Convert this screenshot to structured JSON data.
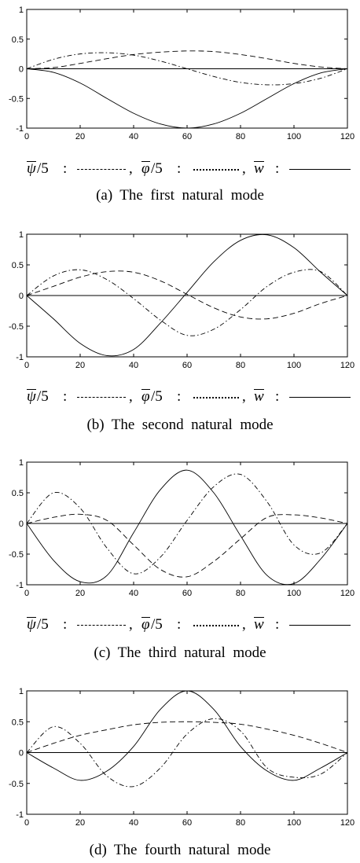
{
  "legend": {
    "psi": {
      "symbol": "ψ",
      "divisor": "/5"
    },
    "phi": {
      "symbol": "φ",
      "divisor": "/5"
    },
    "w": {
      "symbol": "w"
    },
    "colon": ":",
    "comma": ","
  },
  "chart_data": [
    {
      "type": "line",
      "caption": "(a)  The  first  natural  mode",
      "xlim": [
        0,
        120
      ],
      "ylim": [
        -1,
        1
      ],
      "xticks": [
        "0",
        "20",
        "40",
        "60",
        "80",
        "100",
        "120"
      ],
      "yticks": [
        "-1",
        "-0.5",
        "0",
        "0.5",
        "1"
      ],
      "x": [
        0,
        10,
        20,
        30,
        40,
        50,
        60,
        70,
        80,
        90,
        100,
        110,
        120
      ],
      "series": [
        {
          "name": "ψ/5",
          "style": "dashed",
          "values": [
            0,
            0.02,
            0.09,
            0.17,
            0.24,
            0.28,
            0.3,
            0.29,
            0.24,
            0.17,
            0.09,
            0.03,
            0
          ]
        },
        {
          "name": "φ/5",
          "style": "dashdot",
          "values": [
            0,
            0.16,
            0.25,
            0.27,
            0.23,
            0.13,
            0.0,
            -0.13,
            -0.23,
            -0.27,
            -0.25,
            -0.16,
            0
          ]
        },
        {
          "name": "w",
          "style": "solid",
          "values": [
            0,
            -0.06,
            -0.24,
            -0.5,
            -0.75,
            -0.93,
            -1.0,
            -0.93,
            -0.75,
            -0.5,
            -0.25,
            -0.07,
            0
          ]
        }
      ]
    },
    {
      "type": "line",
      "caption": "(b)  The  second  natural  mode",
      "xlim": [
        0,
        120
      ],
      "ylim": [
        -1,
        1
      ],
      "xticks": [
        "0",
        "20",
        "40",
        "60",
        "80",
        "100",
        "120"
      ],
      "yticks": [
        "-1",
        "-0.5",
        "0",
        "0.5",
        "1"
      ],
      "x": [
        0,
        10,
        20,
        30,
        40,
        50,
        60,
        70,
        80,
        90,
        100,
        110,
        120
      ],
      "series": [
        {
          "name": "ψ/5",
          "style": "dashed",
          "values": [
            0,
            0.15,
            0.3,
            0.39,
            0.38,
            0.24,
            0.02,
            -0.2,
            -0.35,
            -0.38,
            -0.29,
            -0.13,
            0
          ]
        },
        {
          "name": "φ/5",
          "style": "dashdot",
          "values": [
            0,
            0.32,
            0.42,
            0.26,
            -0.05,
            -0.4,
            -0.65,
            -0.55,
            -0.23,
            0.15,
            0.38,
            0.39,
            0
          ]
        },
        {
          "name": "w",
          "style": "solid",
          "values": [
            0,
            -0.38,
            -0.78,
            -0.98,
            -0.88,
            -0.45,
            0.05,
            0.55,
            0.9,
            0.99,
            0.78,
            0.38,
            0
          ]
        }
      ]
    },
    {
      "type": "line",
      "caption": "(c)  The  third  natural  mode",
      "xlim": [
        0,
        120
      ],
      "ylim": [
        -1,
        1
      ],
      "xticks": [
        "0",
        "20",
        "40",
        "60",
        "80",
        "100",
        "120"
      ],
      "yticks": [
        "-1",
        "-0.5",
        "0",
        "0.5",
        "1"
      ],
      "x": [
        0,
        10,
        20,
        30,
        40,
        50,
        60,
        70,
        80,
        90,
        100,
        110,
        120
      ],
      "series": [
        {
          "name": "ψ/5",
          "style": "dashed",
          "values": [
            0,
            0.1,
            0.15,
            0.05,
            -0.35,
            -0.75,
            -0.87,
            -0.62,
            -0.25,
            0.1,
            0.14,
            0.09,
            0
          ]
        },
        {
          "name": "φ/5",
          "style": "dashdot",
          "values": [
            0,
            0.5,
            0.25,
            -0.4,
            -0.82,
            -0.55,
            0.05,
            0.6,
            0.8,
            0.35,
            -0.35,
            -0.48,
            0
          ]
        },
        {
          "name": "w",
          "style": "solid",
          "values": [
            0,
            -0.6,
            -0.95,
            -0.85,
            -0.15,
            0.55,
            0.87,
            0.5,
            -0.2,
            -0.85,
            -0.98,
            -0.58,
            0
          ]
        }
      ]
    },
    {
      "type": "line",
      "caption": "(d)  The  fourth  natural  mode",
      "xlim": [
        0,
        120
      ],
      "ylim": [
        -1,
        1
      ],
      "xticks": [
        "0",
        "20",
        "40",
        "60",
        "80",
        "100",
        "120"
      ],
      "yticks": [
        "-1",
        "-0.5",
        "0",
        "0.5",
        "1"
      ],
      "x": [
        0,
        10,
        20,
        30,
        40,
        50,
        60,
        70,
        80,
        90,
        100,
        110,
        120
      ],
      "series": [
        {
          "name": "ψ/5",
          "style": "dashed",
          "values": [
            0,
            0.15,
            0.28,
            0.37,
            0.45,
            0.49,
            0.5,
            0.49,
            0.46,
            0.38,
            0.28,
            0.15,
            0
          ]
        },
        {
          "name": "φ/5",
          "style": "dashdot",
          "values": [
            0,
            0.42,
            0.15,
            -0.38,
            -0.55,
            -0.25,
            0.3,
            0.55,
            0.35,
            -0.25,
            -0.4,
            -0.35,
            0
          ]
        },
        {
          "name": "w",
          "style": "solid",
          "values": [
            0,
            -0.25,
            -0.45,
            -0.3,
            0.1,
            0.7,
            1.0,
            0.7,
            0.1,
            -0.3,
            -0.45,
            -0.25,
            0
          ]
        }
      ]
    }
  ]
}
